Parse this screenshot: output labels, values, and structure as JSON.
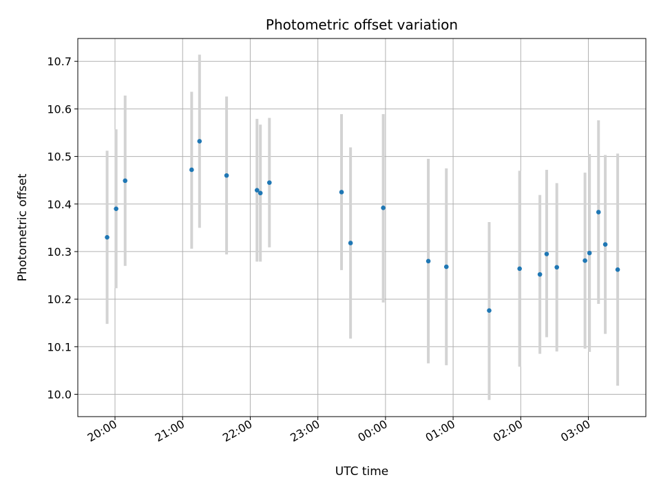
{
  "chart_data": {
    "type": "scatter",
    "title": "Photometric offset variation",
    "xlabel": "UTC time",
    "ylabel": "Photometric offset",
    "x_ticks": [
      "20:00",
      "21:00",
      "22:00",
      "23:00",
      "00:00",
      "01:00",
      "02:00",
      "03:00"
    ],
    "y_ticks": [
      "10.0",
      "10.1",
      "10.2",
      "10.3",
      "10.4",
      "10.5",
      "10.6",
      "10.7"
    ],
    "xlim": [
      "19:27",
      "03:51"
    ],
    "ylim": [
      9.953,
      10.748
    ],
    "grid": true,
    "colors": {
      "point": "#1f77b4",
      "errorbar": "#d3d3d3",
      "grid": "#b0b0b0"
    },
    "points": [
      {
        "time": "19:53",
        "y": 10.33,
        "low": 10.148,
        "high": 10.512
      },
      {
        "time": "20:01",
        "y": 10.39,
        "low": 10.223,
        "high": 10.557
      },
      {
        "time": "20:09",
        "y": 10.449,
        "low": 10.27,
        "high": 10.628
      },
      {
        "time": "21:08",
        "y": 10.472,
        "low": 10.306,
        "high": 10.636
      },
      {
        "time": "21:15",
        "y": 10.532,
        "low": 10.35,
        "high": 10.714
      },
      {
        "time": "21:39",
        "y": 10.46,
        "low": 10.294,
        "high": 10.626
      },
      {
        "time": "22:06",
        "y": 10.429,
        "low": 10.279,
        "high": 10.579
      },
      {
        "time": "22:09",
        "y": 10.423,
        "low": 10.279,
        "high": 10.567
      },
      {
        "time": "22:17",
        "y": 10.445,
        "low": 10.309,
        "high": 10.581
      },
      {
        "time": "23:21",
        "y": 10.425,
        "low": 10.261,
        "high": 10.589
      },
      {
        "time": "23:29",
        "y": 10.318,
        "low": 10.117,
        "high": 10.519
      },
      {
        "time": "23:58",
        "y": 10.392,
        "low": 10.193,
        "high": 10.589
      },
      {
        "time": "00:38",
        "y": 10.28,
        "low": 10.065,
        "high": 10.495
      },
      {
        "time": "00:54",
        "y": 10.268,
        "low": 10.061,
        "high": 10.475
      },
      {
        "time": "01:32",
        "y": 10.176,
        "low": 9.988,
        "high": 10.362
      },
      {
        "time": "01:59",
        "y": 10.264,
        "low": 10.058,
        "high": 10.47
      },
      {
        "time": "02:17",
        "y": 10.252,
        "low": 10.085,
        "high": 10.419
      },
      {
        "time": "02:23",
        "y": 10.295,
        "low": 10.12,
        "high": 10.472
      },
      {
        "time": "02:32",
        "y": 10.267,
        "low": 10.09,
        "high": 10.444
      },
      {
        "time": "02:57",
        "y": 10.281,
        "low": 10.096,
        "high": 10.466
      },
      {
        "time": "03:01",
        "y": 10.297,
        "low": 10.089,
        "high": 10.505
      },
      {
        "time": "03:09",
        "y": 10.383,
        "low": 10.19,
        "high": 10.576
      },
      {
        "time": "03:15",
        "y": 10.315,
        "low": 10.127,
        "high": 10.503
      },
      {
        "time": "03:26",
        "y": 10.262,
        "low": 10.018,
        "high": 10.506
      }
    ]
  }
}
